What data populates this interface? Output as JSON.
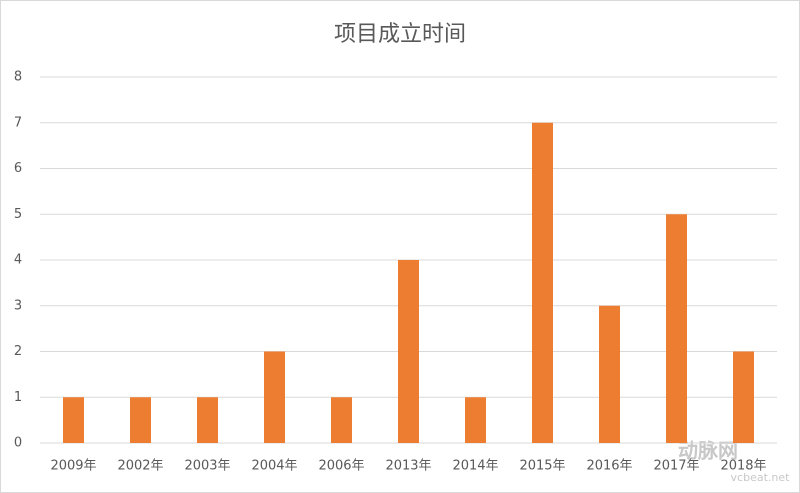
{
  "chart_data": {
    "type": "bar",
    "title": "项目成立时间",
    "categories": [
      "2009年",
      "2002年",
      "2003年",
      "2004年",
      "2006年",
      "2013年",
      "2014年",
      "2015年",
      "2016年",
      "2017年",
      "2018年"
    ],
    "values": [
      1,
      1,
      1,
      2,
      1,
      4,
      1,
      7,
      3,
      5,
      2
    ],
    "color": "#ed7d31",
    "ylim": [
      0,
      8
    ],
    "yticks": [
      0,
      1,
      2,
      3,
      4,
      5,
      6,
      7,
      8
    ],
    "grid": true,
    "watermark": [
      "动脉网",
      "vcbeat.net"
    ]
  }
}
